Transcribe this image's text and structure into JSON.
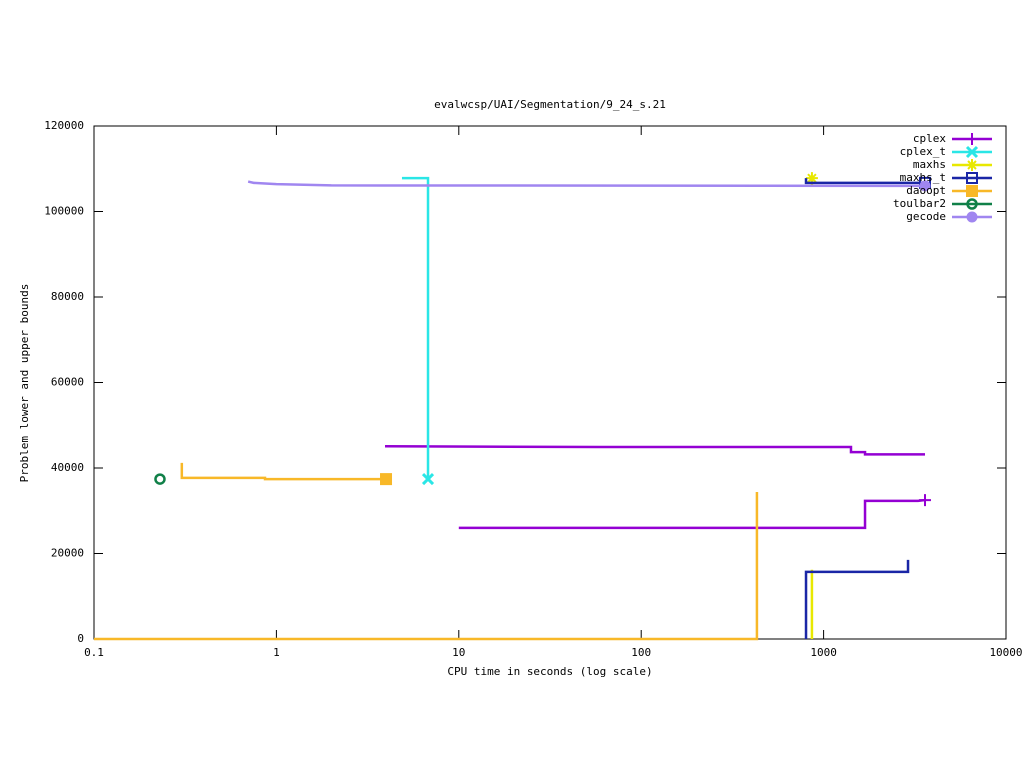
{
  "chart_data": {
    "type": "line",
    "title": "evalwcsp/UAI/Segmentation/9_24_s.21",
    "xlabel": "CPU time in seconds (log scale)",
    "ylabel": "Problem lower and upper bounds",
    "xlog": true,
    "xlim": [
      0.1,
      10000
    ],
    "xticks": [
      0.1,
      1,
      10,
      100,
      1000,
      10000
    ],
    "ylim": [
      0,
      120000
    ],
    "yticks": [
      0,
      20000,
      40000,
      60000,
      80000,
      100000,
      120000
    ],
    "legend": "top-right",
    "series": [
      {
        "name": "cplex",
        "color": "#9400d3",
        "marker": "plus",
        "x": [
          3.94,
          58,
          1413,
          1413,
          1687,
          1687,
          3597,
          null,
          10,
          1687,
          1687,
          3294,
          3597
        ],
        "values": [
          45100,
          44900,
          44900,
          43700,
          43700,
          43200,
          43200,
          null,
          26000,
          26000,
          32300,
          32300,
          32500
        ]
      },
      {
        "name": "cplex_t",
        "color": "#2ae6e6",
        "marker": "cross",
        "x": [
          4.88,
          6.78,
          6.78
        ],
        "values": [
          107800,
          107800,
          37400
        ]
      },
      {
        "name": "maxhs",
        "color": "#e8e800",
        "marker": "star",
        "x": [
          863,
          863,
          null,
          863,
          863
        ],
        "values": [
          0,
          16200,
          null,
          106000,
          107800
        ]
      },
      {
        "name": "maxhs_t",
        "color": "#1a26a6",
        "marker": "open-square",
        "x": [
          801,
          801,
          2903,
          2903,
          null,
          801,
          801,
          3597
        ],
        "values": [
          0,
          15700,
          15700,
          18500,
          null,
          107800,
          106700,
          106700
        ]
      },
      {
        "name": "daoopt",
        "color": "#f8b828",
        "marker": "square",
        "x": [
          0.1,
          431,
          431,
          null,
          0.303,
          0.303,
          0.866,
          0.866,
          3.99
        ],
        "values": [
          0,
          0,
          34400,
          null,
          41200,
          37700,
          37700,
          37400,
          37400
        ]
      },
      {
        "name": "toulbar2",
        "color": "#108048",
        "marker": "open-circle",
        "x": [
          0.23
        ],
        "values": [
          37400
        ]
      },
      {
        "name": "gecode",
        "color": "#a086f0",
        "marker": "circle",
        "x": [
          0.7,
          0.75,
          1.0,
          2.0,
          3597
        ],
        "values": [
          107000,
          106700,
          106400,
          106100,
          106000
        ]
      }
    ]
  }
}
